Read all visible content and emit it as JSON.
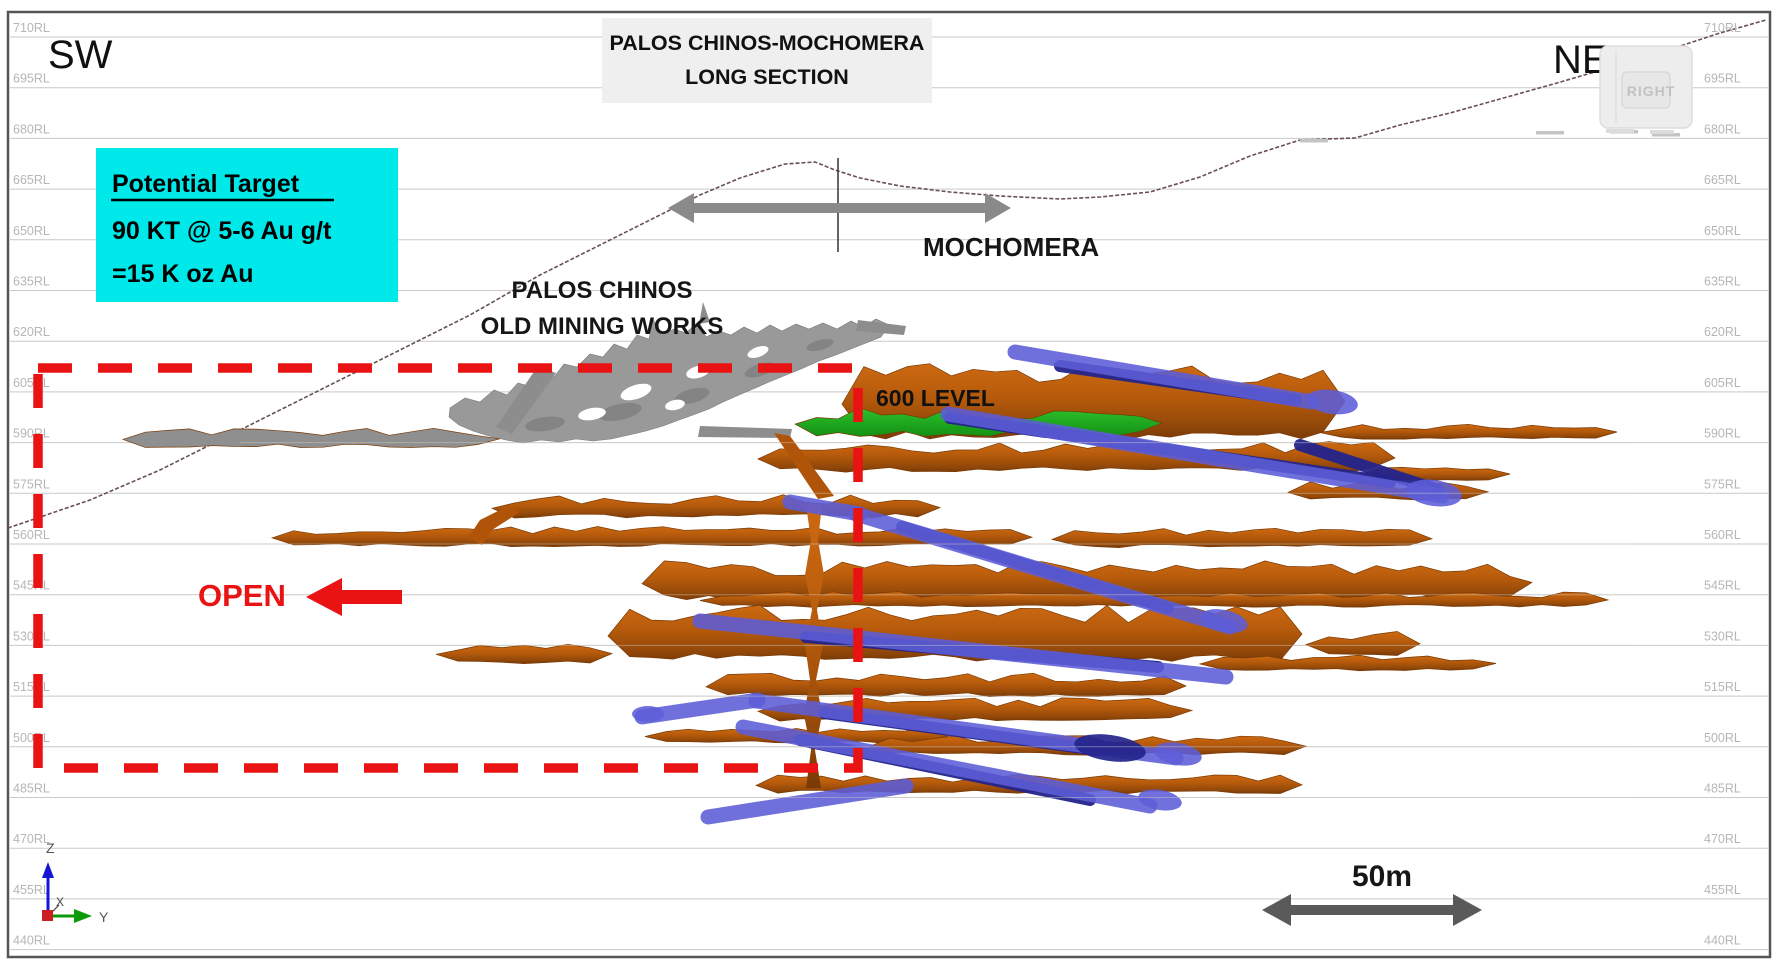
{
  "title": {
    "line1": "PALOS CHINOS-MOCHOMERA",
    "line2": "LONG SECTION"
  },
  "orientation": {
    "left": "SW",
    "right": "NE"
  },
  "target_box": {
    "heading": "Potential Target",
    "line2": "90 KT @ 5-6  Au g/t",
    "line3": "=15 K oz Au"
  },
  "labels": {
    "old_workings_line1": "PALOS CHINOS",
    "old_workings_line2": "OLD MINING WORKS",
    "mochomera": "MOCHOMERA",
    "level": "600 LEVEL",
    "open": "OPEN",
    "scale": "50m",
    "watermark": "RIGHT"
  },
  "axis_triad": {
    "z": "Z",
    "x": "X",
    "y": "Y"
  },
  "elevation_labels": [
    "710RL",
    "695RL",
    "680RL",
    "665RL",
    "650RL",
    "635RL",
    "620RL",
    "605RL",
    "590RL",
    "575RL",
    "560RL",
    "545RL",
    "530RL",
    "515RL",
    "500RL",
    "485RL",
    "470RL",
    "455RL",
    "440RL"
  ],
  "colors": {
    "target_box_bg": "#00e9ea",
    "red_annotation": "#e91313",
    "ore_lens": "#b55a0b",
    "ore_lens_light": "#cd6a12",
    "ore_lens_dark": "#7a3a06",
    "decline": "#5d5dd8",
    "decline_dark": "#24248c",
    "level_600": "#1fae1f",
    "old_workings": "#999999",
    "grid": "#c9c9c9",
    "rl_label": "#b6b6b6",
    "topography": "#6a5050",
    "mochomera_arrow": "#8a8a8a",
    "scale_arrow": "#5a5a5a",
    "title_bg": "#efefef",
    "frame": "#555555"
  }
}
